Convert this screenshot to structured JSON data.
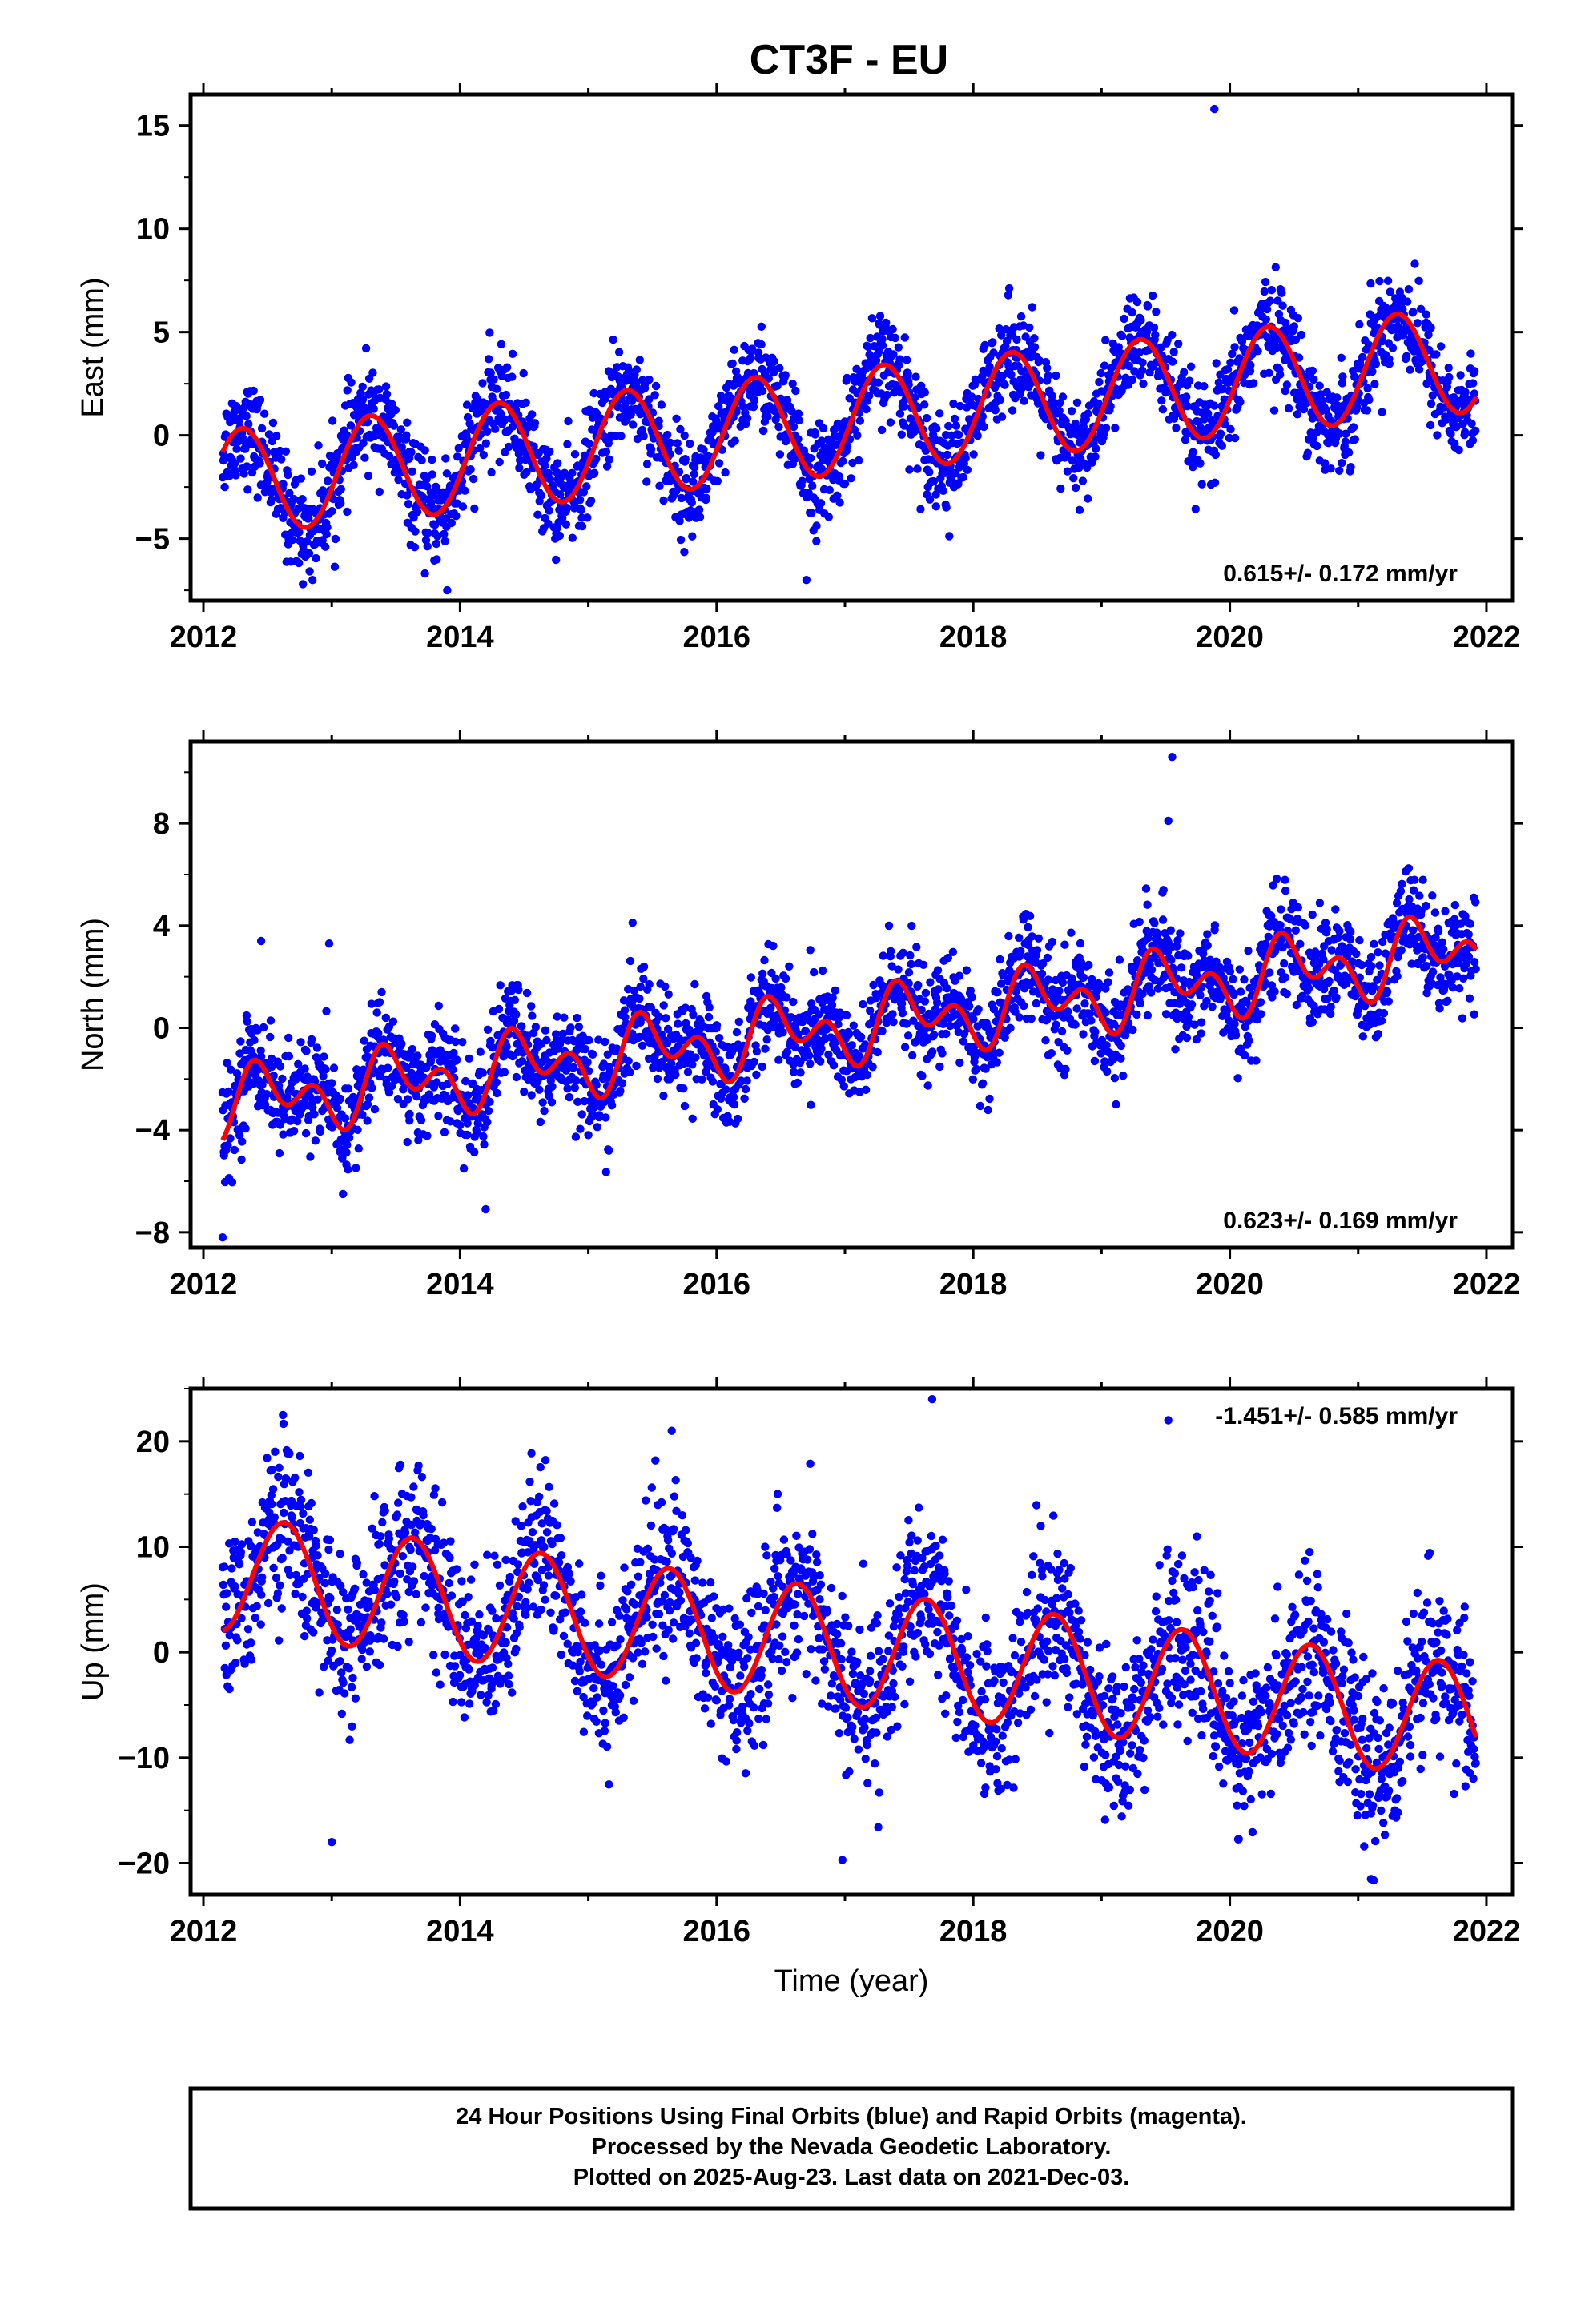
{
  "title": "CT3F - EU",
  "footer": {
    "lines": [
      "24 Hour Positions Using Final Orbits (blue) and Rapid Orbits (magenta).",
      "Processed by the Nevada Geodetic Laboratory.",
      "Plotted on 2025-Aug-23. Last data on 2021-Dec-03."
    ]
  },
  "colors": {
    "points": "#0000ff",
    "fit": "#ff0000",
    "frame": "#000000"
  },
  "chart_data": [
    {
      "type": "scatter",
      "ylabel": "East (mm)",
      "xlabel": "",
      "xlim": [
        2011.9,
        2022.2
      ],
      "ylim": [
        -8,
        16.5
      ],
      "xticks": [
        2012,
        2014,
        2016,
        2018,
        2020,
        2022
      ],
      "yticks": [
        -5,
        0,
        5,
        10,
        15
      ],
      "rate_text": "0.615+/- 0.172 mm/yr",
      "model": {
        "t0": 2012.15,
        "offset": -2.3,
        "rate": 0.615,
        "amplitude": 2.55,
        "phase": 2012.05,
        "semiannual": 0
      },
      "data_range": [
        2012.15,
        2021.92
      ],
      "noise": 1.2,
      "outliers": [
        [
          2019.88,
          15.8
        ],
        [
          2013.9,
          -7.5
        ],
        [
          2016.7,
          -7.0
        ],
        [
          2012.85,
          -7.0
        ]
      ]
    },
    {
      "type": "scatter",
      "ylabel": "North (mm)",
      "xlabel": "",
      "xlim": [
        2011.9,
        2022.2
      ],
      "ylim": [
        -8.6,
        11.2
      ],
      "xticks": [
        2012,
        2014,
        2016,
        2018,
        2020,
        2022
      ],
      "yticks": [
        -8,
        -4,
        0,
        4,
        8
      ],
      "rate_text": "0.623+/- 0.169 mm/yr",
      "model": {
        "t0": 2012.15,
        "offset": -3.0,
        "rate": 0.623,
        "amplitude": 0.9,
        "phase": 2012.25,
        "semiannual": 0.9
      },
      "data_range": [
        2012.15,
        2021.92
      ],
      "noise": 1.0,
      "outliers": [
        [
          2019.55,
          10.6
        ],
        [
          2019.52,
          8.1
        ],
        [
          2012.98,
          3.3
        ],
        [
          2012.45,
          3.4
        ],
        [
          2012.15,
          -8.2
        ],
        [
          2014.2,
          -7.1
        ]
      ]
    },
    {
      "type": "scatter",
      "ylabel": "Up (mm)",
      "xlabel": "Time (year)",
      "xlim": [
        2011.9,
        2022.2
      ],
      "ylim": [
        -23,
        25
      ],
      "xticks": [
        2012,
        2014,
        2016,
        2018,
        2020,
        2022
      ],
      "yticks": [
        -20,
        -10,
        0,
        10,
        20
      ],
      "rate_text": "-1.451+/- 0.585 mm/yr",
      "model": {
        "t0": 2012.15,
        "offset": 7.5,
        "rate": -1.451,
        "amplitude": 5.5,
        "phase": 2012.38,
        "semiannual": 0
      },
      "data_range": [
        2012.15,
        2021.92
      ],
      "noise": 3.8,
      "outliers": [
        [
          2012.62,
          22.5
        ],
        [
          2017.68,
          24.0
        ],
        [
          2019.52,
          22.0
        ],
        [
          2013.0,
          -18.0
        ],
        [
          2016.98,
          -19.7
        ],
        [
          2021.1,
          -21.5
        ],
        [
          2015.65,
          21.0
        ]
      ]
    }
  ]
}
